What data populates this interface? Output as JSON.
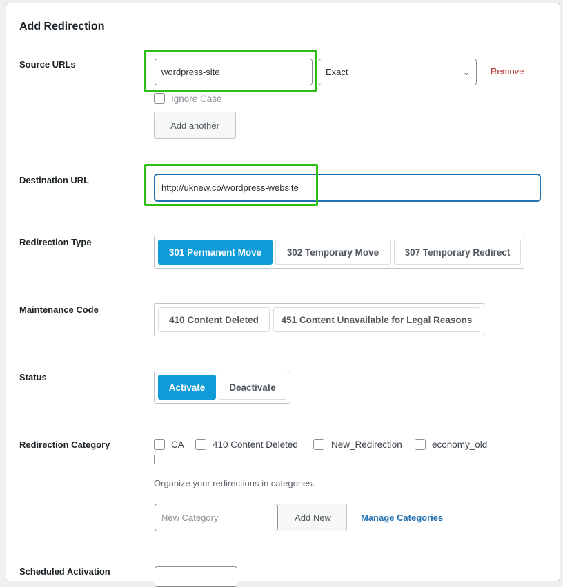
{
  "title": "Add Redirection",
  "source": {
    "label": "Source URLs",
    "value": "wordpress-site",
    "match": "Exact",
    "remove": "Remove",
    "ignore_case": "Ignore Case",
    "add_another": "Add another"
  },
  "destination": {
    "label": "Destination URL",
    "value": "http://uknew.co/wordpress-website"
  },
  "redirection_type": {
    "label": "Redirection Type",
    "options": [
      "301 Permanent Move",
      "302 Temporary Move",
      "307 Temporary Redirect"
    ],
    "selected": "301 Permanent Move"
  },
  "maintenance": {
    "label": "Maintenance Code",
    "options": [
      "410 Content Deleted",
      "451 Content Unavailable for Legal Reasons"
    ]
  },
  "status": {
    "label": "Status",
    "options": [
      "Activate",
      "Deactivate"
    ],
    "selected": "Activate"
  },
  "category": {
    "label": "Redirection Category",
    "items": [
      "CA",
      "410 Content Deleted",
      "New_Redirection",
      "economy_old"
    ],
    "help": "Organize your redirections in categories.",
    "new_placeholder": "New Category",
    "add_new": "Add New",
    "manage": "Manage Categories"
  },
  "scheduled": {
    "label": "Scheduled Activation"
  },
  "colors": {
    "accent": "#0f9ad8",
    "highlight": "#2ebd14",
    "remove": "#b32d2e",
    "link": "#2271b1"
  }
}
